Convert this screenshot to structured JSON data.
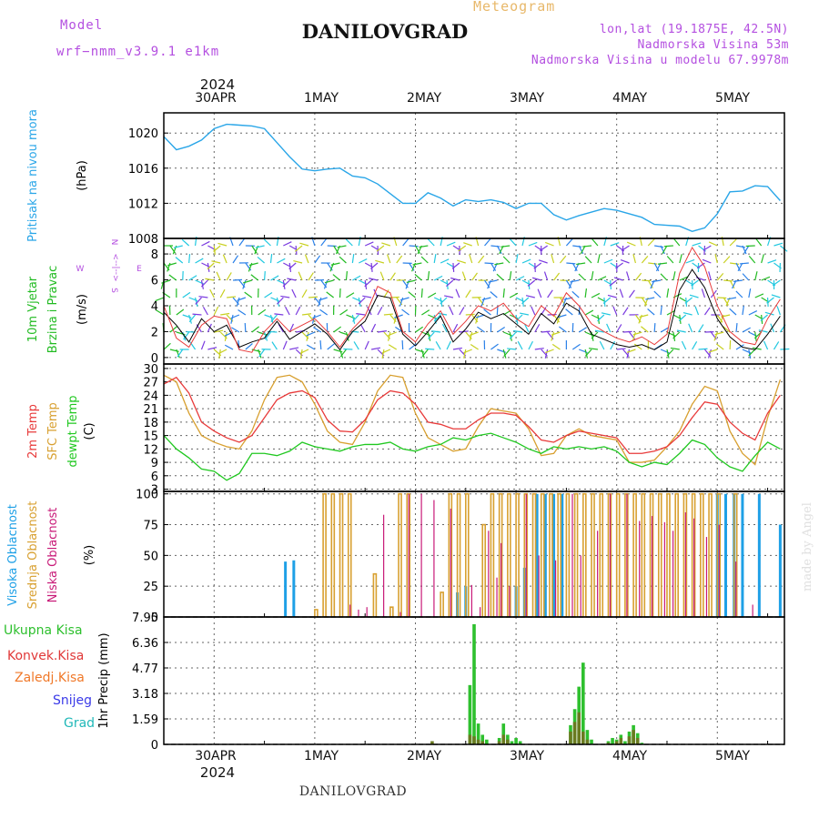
{
  "header": {
    "model_label": "Model",
    "model_version": "wrf−nmm_v3.9.1  e1km",
    "title": "DANILOVGRAD",
    "meteogram_label": "Meteogram",
    "lonlat": "lon,lat (19.1875E, 42.5N)",
    "elevation": "Nadmorska Visina 53m",
    "elevation_model": "Nadmorska Visina u modelu 67.9978m",
    "year": "2024",
    "footer": "DANILOVGRAD",
    "made_by": "made by Angel"
  },
  "days": [
    "30APR",
    "1MAY",
    "2MAY",
    "3MAY",
    "4MAY",
    "5MAY"
  ],
  "colors": {
    "pressure": "#2aa6e8",
    "wind_green": "#22bb22",
    "temp2m": "#e83a3a",
    "sfc": "#d8a030",
    "dewpt": "#20c820",
    "high_cloud": "#1ea0e6",
    "mid_cloud": "#d8a030",
    "low_cloud": "#c81a78",
    "total_precip": "#2ec02e",
    "conv_precip": "#e03838",
    "frozen_precip": "#f07828",
    "snow": "#3a3ae8",
    "graupel": "#20b8b8",
    "compass": "#b44fe0"
  },
  "chart_data": [
    {
      "type": "line",
      "panel": "pressure",
      "ylabel": [
        "Pritisak na nivou mora",
        "(hPa)"
      ],
      "yticks": [
        1008,
        1012,
        1016,
        1020
      ],
      "ylim": [
        1008,
        1022.3
      ],
      "x_hours": [
        0,
        3,
        6,
        9,
        12,
        15,
        18,
        21,
        24,
        27,
        30,
        33,
        36,
        39,
        42,
        45,
        48,
        51,
        54,
        57,
        60,
        63,
        66,
        69,
        72,
        75,
        78,
        81,
        84,
        87,
        90,
        93,
        96,
        99,
        102,
        105,
        108,
        111,
        114,
        117,
        120,
        123,
        126,
        129,
        132,
        135,
        138,
        141,
        144,
        147
      ],
      "values": [
        1019.6,
        1018.1,
        1018.5,
        1019.2,
        1020.5,
        1021.0,
        1020.9,
        1020.8,
        1020.5,
        1018.9,
        1017.3,
        1015.9,
        1015.7,
        1015.9,
        1016.0,
        1015.1,
        1014.9,
        1014.2,
        1013.1,
        1012.0,
        1012.0,
        1013.2,
        1012.6,
        1011.7,
        1012.4,
        1012.2,
        1012.4,
        1012.1,
        1011.4,
        1012.0,
        1012.0,
        1010.7,
        1010.1,
        1010.6,
        1011.0,
        1011.4,
        1011.2,
        1010.8,
        1010.4,
        1009.6,
        1009.5,
        1009.4,
        1008.8,
        1009.2,
        1010.8,
        1013.3,
        1013.4,
        1014.0,
        1013.9,
        1012.3
      ]
    },
    {
      "type": "line",
      "panel": "wind",
      "ylabel": [
        "10m Vjetar",
        "Brzina i Pravac",
        "(m/s)"
      ],
      "compass": [
        "N",
        "<--|-->",
        "E",
        "W",
        "S"
      ],
      "yticks": [
        0,
        2,
        4,
        6,
        8
      ],
      "ylim": [
        -0.5,
        9.2
      ],
      "x_hours": [
        0,
        3,
        6,
        9,
        12,
        15,
        18,
        21,
        24,
        27,
        30,
        33,
        36,
        39,
        42,
        45,
        48,
        51,
        54,
        57,
        60,
        63,
        66,
        69,
        72,
        75,
        78,
        81,
        84,
        87,
        90,
        93,
        96,
        99,
        102,
        105,
        108,
        111,
        114,
        117,
        120,
        123,
        126,
        129,
        132,
        135,
        138,
        141,
        144,
        147
      ],
      "speed": [
        3.5,
        2.5,
        1.2,
        3.0,
        2.0,
        2.5,
        0.8,
        1.2,
        1.5,
        2.8,
        1.4,
        2.0,
        2.6,
        1.8,
        0.6,
        2.0,
        2.8,
        4.8,
        4.6,
        1.8,
        0.9,
        2.0,
        3.2,
        1.2,
        2.2,
        3.5,
        3.0,
        3.4,
        2.6,
        1.8,
        3.4,
        2.6,
        4.2,
        3.6,
        1.8,
        1.4,
        1.0,
        0.8,
        1.0,
        0.6,
        1.2,
        5.2,
        6.8,
        5.4,
        3.0,
        1.6,
        0.8,
        0.6,
        1.8,
        3.2
      ],
      "gust": [
        4.0,
        1.5,
        0.8,
        2.5,
        3.2,
        3.0,
        0.6,
        0.4,
        2.0,
        3.0,
        2.0,
        2.5,
        3.0,
        2.0,
        0.8,
        2.2,
        3.2,
        5.5,
        5.0,
        2.0,
        1.2,
        2.6,
        3.6,
        1.8,
        2.8,
        4.0,
        3.6,
        4.2,
        3.0,
        2.4,
        4.0,
        3.2,
        5.0,
        4.0,
        2.6,
        2.0,
        1.5,
        1.2,
        1.6,
        1.0,
        1.8,
        6.5,
        8.5,
        7.0,
        4.0,
        2.0,
        1.2,
        1.0,
        3.0,
        4.5
      ]
    },
    {
      "type": "line",
      "panel": "temperature",
      "ylabel": [
        "2m Temp",
        "SFC Temp",
        "dewpt Temp",
        "(C)"
      ],
      "yticks": [
        3,
        6,
        9,
        12,
        15,
        18,
        21,
        24,
        27,
        30
      ],
      "ylim": [
        2.5,
        31
      ],
      "x_hours": [
        0,
        3,
        6,
        9,
        12,
        15,
        18,
        21,
        24,
        27,
        30,
        33,
        36,
        39,
        42,
        45,
        48,
        51,
        54,
        57,
        60,
        63,
        66,
        69,
        72,
        75,
        78,
        81,
        84,
        87,
        90,
        93,
        96,
        99,
        102,
        105,
        108,
        111,
        114,
        117,
        120,
        123,
        126,
        129,
        132,
        135,
        138,
        141,
        144,
        147
      ],
      "t2m": [
        26.5,
        28.0,
        24.5,
        18.0,
        16.0,
        14.5,
        13.5,
        15.0,
        19.0,
        23.0,
        24.5,
        25.0,
        23.5,
        18.5,
        16.0,
        15.8,
        18.5,
        23.0,
        25.0,
        24.5,
        22.0,
        18.0,
        17.5,
        16.5,
        16.5,
        18.5,
        20.0,
        20.0,
        19.5,
        17.0,
        14.0,
        13.5,
        15.0,
        16.0,
        15.5,
        15.0,
        14.5,
        11.0,
        11.0,
        11.5,
        12.5,
        15.0,
        19.0,
        22.5,
        22.0,
        18.0,
        15.5,
        14.0,
        20.0,
        24.0
      ],
      "sfc": [
        28.5,
        27.0,
        20.0,
        15.0,
        13.5,
        12.5,
        12.0,
        16.0,
        23.0,
        28.0,
        28.5,
        27.0,
        22.0,
        16.0,
        13.5,
        13.0,
        18.0,
        25.0,
        28.5,
        28.0,
        20.0,
        14.5,
        13.0,
        11.5,
        12.0,
        17.0,
        21.0,
        20.5,
        20.0,
        16.5,
        10.5,
        11.0,
        15.0,
        16.5,
        15.0,
        14.5,
        14.0,
        9.0,
        9.0,
        9.5,
        12.5,
        16.0,
        22.0,
        26.0,
        25.0,
        16.0,
        11.0,
        8.5,
        19.0,
        27.5
      ],
      "dewpt": [
        15.0,
        12.0,
        10.0,
        7.5,
        7.0,
        5.0,
        6.5,
        11.0,
        11.0,
        10.5,
        11.5,
        13.5,
        12.5,
        12.0,
        11.5,
        12.5,
        13.0,
        13.0,
        13.5,
        12.0,
        11.5,
        12.5,
        13.0,
        14.5,
        14.0,
        15.0,
        15.5,
        14.5,
        13.5,
        12.0,
        11.0,
        12.5,
        12.0,
        12.5,
        12.0,
        12.5,
        11.5,
        9.0,
        8.0,
        9.0,
        8.5,
        11.0,
        14.0,
        13.0,
        10.0,
        8.0,
        7.0,
        10.5,
        13.5,
        12.0
      ]
    },
    {
      "type": "bar",
      "panel": "cloud",
      "ylabel": [
        "Visoka Oblacnost",
        "Srednja Oblacnost",
        "Niska Oblacnost",
        "(%)"
      ],
      "yticks": [
        0,
        25,
        50,
        75,
        100
      ],
      "ylim": [
        0,
        102
      ],
      "series": [
        {
          "name": "Visoka Oblacnost",
          "hours": [
            29,
            31,
            70,
            72,
            84,
            86,
            89,
            91,
            93,
            95,
            132,
            134,
            136,
            138,
            142,
            147
          ],
          "values": [
            45,
            46,
            20,
            25,
            25,
            40,
            100,
            100,
            100,
            100,
            100,
            100,
            100,
            100,
            100,
            75
          ]
        },
        {
          "name": "Srednja Oblacnost",
          "hours": [
            36,
            38,
            40,
            42,
            44,
            50,
            54,
            56,
            58,
            66,
            68,
            70,
            72,
            76,
            78,
            80,
            82,
            84,
            86,
            88,
            90,
            92,
            94,
            96,
            98,
            100,
            102,
            104,
            106,
            108,
            110,
            112,
            114,
            116,
            118,
            120,
            122,
            124,
            126,
            128,
            130,
            132,
            136
          ],
          "values": [
            6,
            100,
            100,
            100,
            100,
            35,
            8,
            100,
            100,
            20,
            100,
            100,
            100,
            75,
            100,
            100,
            100,
            100,
            100,
            100,
            100,
            100,
            100,
            100,
            100,
            100,
            100,
            100,
            100,
            100,
            100,
            100,
            100,
            100,
            100,
            100,
            100,
            100,
            100,
            100,
            100,
            100,
            100
          ]
        },
        {
          "name": "Niska Oblacnost",
          "hours": [
            44,
            46,
            48,
            52,
            56,
            58,
            61,
            64,
            68,
            73,
            75,
            77,
            79,
            80,
            82,
            86,
            89,
            93,
            97,
            99,
            103,
            106,
            110,
            113,
            116,
            119,
            121,
            124,
            126,
            129,
            132,
            136,
            140
          ],
          "values": [
            10,
            6,
            8,
            83,
            4,
            100,
            100,
            95,
            88,
            26,
            8,
            70,
            32,
            60,
            25,
            100,
            50,
            46,
            100,
            50,
            70,
            100,
            100,
            78,
            82,
            77,
            70,
            85,
            80,
            65,
            75,
            45,
            10
          ]
        }
      ]
    },
    {
      "type": "bar",
      "panel": "precip",
      "ylabel": [
        "1hr Precip (mm)"
      ],
      "legend": [
        "Ukupna Kisa",
        "Konvek.Kisa",
        "Zaledj.Kisa",
        "Snijeg",
        "Grad"
      ],
      "yticks": [
        0,
        1.59,
        3.18,
        4.77,
        6.36,
        7.95
      ],
      "ylim": [
        0,
        7.95
      ],
      "series": [
        {
          "name": "Ukupna Kisa",
          "hours": [
            73,
            74,
            75,
            76,
            77,
            80,
            81,
            82,
            83,
            84,
            85,
            97,
            98,
            99,
            100,
            101,
            102,
            106,
            107,
            108,
            109,
            110,
            111,
            112,
            113,
            114
          ],
          "values": [
            3.7,
            7.5,
            1.3,
            0.6,
            0.3,
            0.4,
            1.3,
            0.6,
            0.2,
            0.4,
            0.2,
            1.2,
            2.2,
            3.6,
            5.1,
            0.9,
            0.3,
            0.2,
            0.4,
            0.3,
            0.6,
            0.2,
            0.8,
            1.2,
            0.7,
            0.1
          ]
        },
        {
          "name": "Konvek.Kisa",
          "hours": [
            64,
            73,
            74,
            75,
            76,
            80,
            81,
            82,
            97,
            98,
            99,
            100,
            101,
            106,
            108,
            109,
            111,
            112,
            113
          ],
          "values": [
            0.2,
            0.6,
            0.5,
            0.3,
            0.2,
            0.2,
            0.6,
            0.3,
            0.8,
            1.4,
            2.0,
            0.8,
            0.3,
            0.1,
            0.2,
            0.4,
            0.5,
            0.9,
            0.4
          ]
        }
      ]
    }
  ]
}
